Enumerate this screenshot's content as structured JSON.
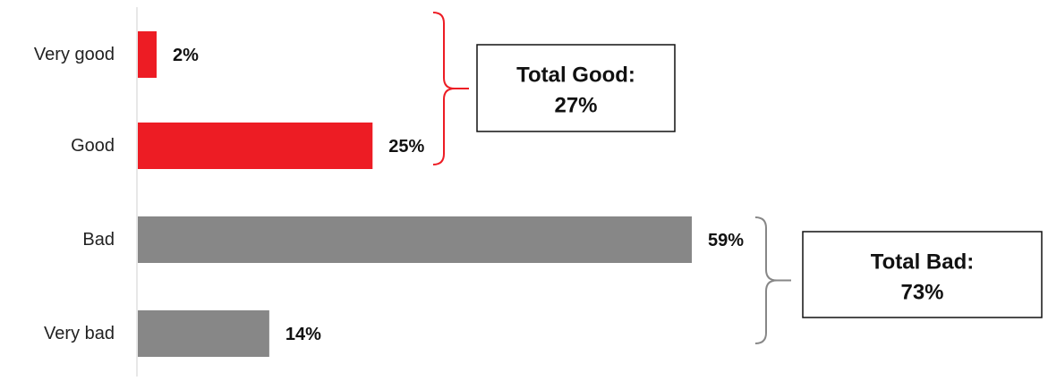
{
  "chart_data": {
    "type": "bar",
    "orientation": "horizontal",
    "categories": [
      "Very good",
      "Good",
      "Bad",
      "Very bad"
    ],
    "values": [
      2,
      25,
      59,
      14
    ],
    "value_suffix": "%",
    "bar_colors": [
      "#ed1c24",
      "#ed1c24",
      "#878787",
      "#878787"
    ],
    "xlim": [
      0,
      60
    ],
    "grid": false,
    "legend": "none",
    "title": "",
    "xlabel": "",
    "ylabel": "",
    "annotations": [
      {
        "id": "good",
        "line1": "Total Good:",
        "line2": "27%",
        "covers": [
          "Very good",
          "Good"
        ],
        "bracket_color": "#ed1c24"
      },
      {
        "id": "bad",
        "line1": "Total Bad:",
        "line2": "73%",
        "covers": [
          "Bad",
          "Very bad"
        ],
        "bracket_color": "#878787"
      }
    ]
  }
}
